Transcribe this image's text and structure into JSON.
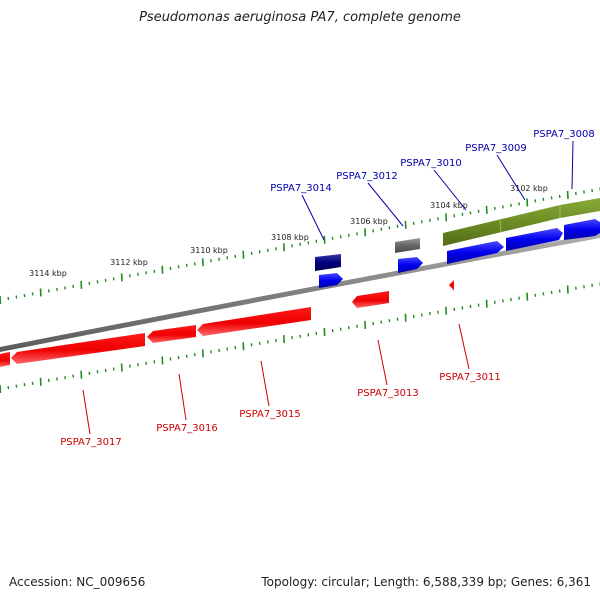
{
  "title": "Pseudomonas aeruginosa PA7, complete genome",
  "footer": {
    "accession": "Accession: NC_009656",
    "topology": "Topology: circular; Length: 6,588,339 bp; Genes: 6,361"
  },
  "colors": {
    "forward_gene": "#0000ee",
    "reverse_gene": "#ee0000",
    "forward_label": "#0000aa",
    "reverse_label": "#cc0000",
    "highlight_band": "#6b8e23",
    "backbone": "#808080",
    "tick": "#228b22",
    "dark_gene": "#000080",
    "grey_gene": "#666666"
  },
  "scale_labels": [
    "3102 kbp",
    "3104 kbp",
    "3106 kbp",
    "3108 kbp",
    "3110 kbp",
    "3112 kbp",
    "3114 kbp"
  ],
  "forward_genes": [
    "PSPA7_3008",
    "PSPA7_3009",
    "PSPA7_3010",
    "PSPA7_3012",
    "PSPA7_3014"
  ],
  "reverse_genes": [
    "PSPA7_3011",
    "PSPA7_3013",
    "PSPA7_3015",
    "PSPA7_3016",
    "PSPA7_3017"
  ]
}
